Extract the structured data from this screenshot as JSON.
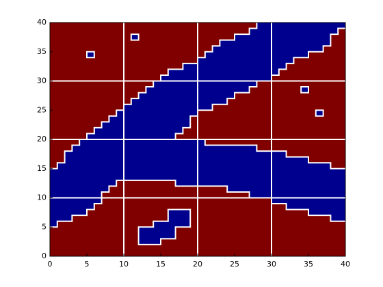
{
  "chart_data": {
    "type": "class-map",
    "colors": [
      "#800000",
      "#00008f"
    ],
    "xlim": [
      0,
      40
    ],
    "ylim": [
      0,
      40
    ],
    "xticks": [
      0,
      5,
      10,
      15,
      20,
      25,
      30,
      35,
      40
    ],
    "yticks": [
      0,
      5,
      10,
      15,
      20,
      25,
      30,
      35,
      40
    ],
    "xgrid": [
      10,
      20,
      30
    ],
    "ygrid": [
      10,
      20,
      30
    ],
    "blue_runs": [
      [
        0,
        5,
        15
      ],
      [
        1,
        6,
        16
      ],
      [
        2,
        6,
        18
      ],
      [
        3,
        7,
        19
      ],
      [
        4,
        7,
        20
      ],
      [
        5,
        8,
        21
      ],
      [
        5,
        34,
        35
      ],
      [
        6,
        9,
        22
      ],
      [
        7,
        11,
        23
      ],
      [
        8,
        12,
        24
      ],
      [
        9,
        13,
        25
      ],
      [
        10,
        13,
        26
      ],
      [
        11,
        13,
        27
      ],
      [
        11,
        37,
        38
      ],
      [
        12,
        13,
        28
      ],
      [
        12,
        2,
        5
      ],
      [
        13,
        13,
        29
      ],
      [
        13,
        2,
        5
      ],
      [
        14,
        13,
        30
      ],
      [
        14,
        2,
        6
      ],
      [
        15,
        13,
        31
      ],
      [
        15,
        3,
        6
      ],
      [
        16,
        13,
        32
      ],
      [
        16,
        3,
        8
      ],
      [
        17,
        12,
        20
      ],
      [
        17,
        21,
        32
      ],
      [
        17,
        5,
        8
      ],
      [
        18,
        12,
        20
      ],
      [
        18,
        22,
        33
      ],
      [
        18,
        5,
        8
      ],
      [
        19,
        12,
        20
      ],
      [
        19,
        24,
        33
      ],
      [
        20,
        12,
        20
      ],
      [
        20,
        25,
        34
      ],
      [
        21,
        12,
        19
      ],
      [
        21,
        25,
        35
      ],
      [
        22,
        12,
        19
      ],
      [
        22,
        26,
        36
      ],
      [
        23,
        12,
        19
      ],
      [
        23,
        26,
        37
      ],
      [
        24,
        11,
        19
      ],
      [
        24,
        27,
        37
      ],
      [
        25,
        11,
        19
      ],
      [
        25,
        28,
        38
      ],
      [
        26,
        11,
        19
      ],
      [
        26,
        28,
        38
      ],
      [
        27,
        10,
        19
      ],
      [
        27,
        29,
        39
      ],
      [
        28,
        10,
        18
      ],
      [
        28,
        30,
        40
      ],
      [
        29,
        10,
        18
      ],
      [
        29,
        30,
        40
      ],
      [
        30,
        9,
        18
      ],
      [
        30,
        31,
        40
      ],
      [
        31,
        9,
        18
      ],
      [
        31,
        32,
        40
      ],
      [
        32,
        8,
        17
      ],
      [
        32,
        33,
        40
      ],
      [
        33,
        8,
        17
      ],
      [
        33,
        34,
        40
      ],
      [
        34,
        8,
        17
      ],
      [
        34,
        34,
        40
      ],
      [
        34,
        28,
        29
      ],
      [
        35,
        7,
        16
      ],
      [
        35,
        35,
        40
      ],
      [
        36,
        7,
        16
      ],
      [
        36,
        35,
        40
      ],
      [
        36,
        24,
        25
      ],
      [
        37,
        7,
        16
      ],
      [
        37,
        36,
        40
      ],
      [
        38,
        6,
        15
      ],
      [
        38,
        38,
        40
      ],
      [
        39,
        6,
        15
      ],
      [
        39,
        39,
        40
      ]
    ]
  }
}
